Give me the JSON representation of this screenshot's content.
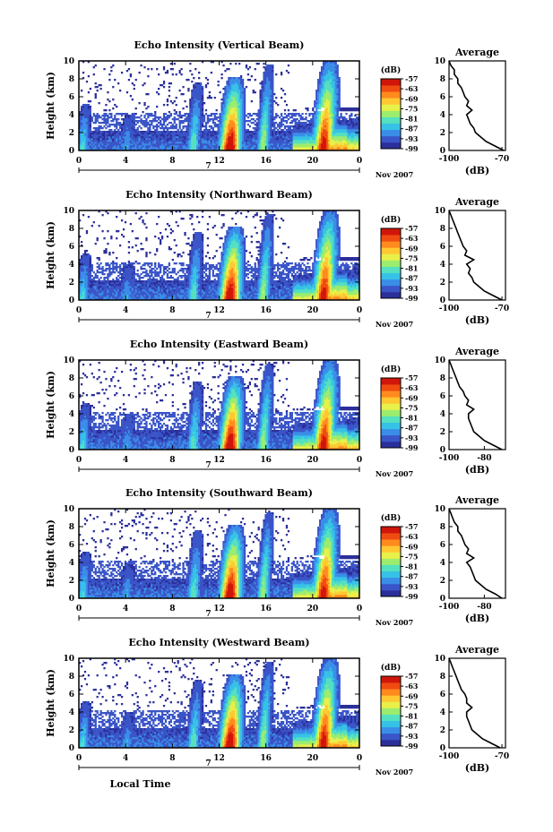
{
  "figure": {
    "bottom_xlabel": "Local Time",
    "panels": [
      {
        "title": "Echo Intensity (Vertical Beam)",
        "avg_xticks": [
          "-100",
          "-70"
        ]
      },
      {
        "title": "Echo Intensity (Northward Beam)",
        "avg_xticks": [
          "-100",
          "-70"
        ]
      },
      {
        "title": "Echo Intensity (Eastward Beam)",
        "avg_xticks": [
          "-100",
          "-80"
        ]
      },
      {
        "title": "Echo Intensity (Southward Beam)",
        "avg_xticks": [
          "-100",
          "-80"
        ]
      },
      {
        "title": "Echo Intensity (Westward Beam)",
        "avg_xticks": [
          "-100",
          "-70"
        ]
      }
    ]
  },
  "chart_data": {
    "type": "heatmap",
    "panel_count": 5,
    "ylabel": "Height (km)",
    "ylim": [
      0,
      10
    ],
    "yticks": [
      "0",
      "2",
      "4",
      "6",
      "8",
      "10"
    ],
    "xlim": [
      0,
      24
    ],
    "xticks": [
      "0",
      "4",
      "8",
      "12",
      "16",
      "20",
      "0"
    ],
    "date_day": "7",
    "date_label": "Nov 2007",
    "colorbar": {
      "unit": "(dB)",
      "range": [
        -99,
        -57
      ],
      "tick_labels": [
        "-57",
        "-63",
        "-69",
        "-75",
        "-81",
        "-87",
        "-93",
        "-99"
      ],
      "colors": [
        "#2b2f9a",
        "#3a55c8",
        "#3a8ee8",
        "#36c2e6",
        "#55e0c0",
        "#9cec6e",
        "#e8f04a",
        "#ffc832",
        "#ff8a1e",
        "#f04c12",
        "#d0160a"
      ]
    },
    "average_profile": {
      "title": "Average",
      "xlabel": "(dB)",
      "height_km": [
        0,
        0.5,
        1,
        1.5,
        2,
        2.5,
        3,
        3.5,
        4,
        4.5,
        5,
        5.5,
        6,
        6.5,
        7,
        7.5,
        8,
        8.5,
        9,
        9.5,
        10
      ],
      "panels": [
        {
          "xlim": [
            -100,
            -68
          ],
          "values": [
            -69,
            -74,
            -79,
            -82,
            -85,
            -86,
            -88,
            -89,
            -90,
            -87,
            -90,
            -89,
            -91,
            -92,
            -93,
            -95,
            -95,
            -97,
            -97,
            -99,
            -100
          ]
        },
        {
          "xlim": [
            -100,
            -68
          ],
          "values": [
            -70,
            -75,
            -80,
            -83,
            -86,
            -87,
            -89,
            -88,
            -90,
            -86,
            -91,
            -90,
            -92,
            -93,
            -94,
            -95,
            -96,
            -97,
            -98,
            -99,
            -100
          ]
        },
        {
          "xlim": [
            -100,
            -68
          ],
          "values": [
            -70,
            -75,
            -80,
            -83,
            -86,
            -87,
            -88,
            -89,
            -89,
            -86,
            -90,
            -89,
            -91,
            -92,
            -94,
            -95,
            -96,
            -97,
            -98,
            -99,
            -100
          ]
        },
        {
          "xlim": [
            -100,
            -68
          ],
          "values": [
            -70,
            -74,
            -79,
            -82,
            -85,
            -86,
            -87,
            -88,
            -90,
            -86,
            -90,
            -89,
            -91,
            -92,
            -93,
            -95,
            -95,
            -97,
            -98,
            -99,
            -100
          ]
        },
        {
          "xlim": [
            -100,
            -68
          ],
          "values": [
            -71,
            -76,
            -81,
            -84,
            -87,
            -88,
            -89,
            -90,
            -90,
            -87,
            -90,
            -90,
            -91,
            -93,
            -94,
            -95,
            -96,
            -97,
            -98,
            -99,
            -100
          ]
        }
      ]
    },
    "events": [
      {
        "time_h": 0.6,
        "top_km": 5.2,
        "core_db": -84
      },
      {
        "time_h": 4.3,
        "top_km": 4.0,
        "core_db": -88
      },
      {
        "time_h": 10.2,
        "top_km": 7.5,
        "core_db": -82
      },
      {
        "time_h": 13.4,
        "top_km": 8.2,
        "core_db": -57
      },
      {
        "time_h": 16.3,
        "top_km": 9.5,
        "core_db": -78
      },
      {
        "time_h": 21.5,
        "top_km": 10.0,
        "core_db": -60
      }
    ]
  }
}
